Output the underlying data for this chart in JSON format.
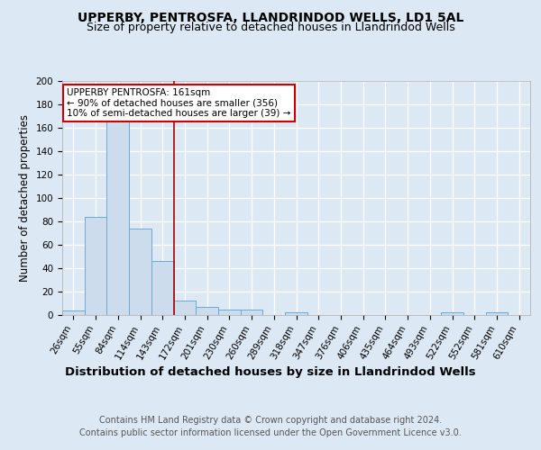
{
  "title1": "UPPERBY, PENTROSFA, LLANDRINDOD WELLS, LD1 5AL",
  "title2": "Size of property relative to detached houses in Llandrindod Wells",
  "xlabel": "Distribution of detached houses by size in Llandrindod Wells",
  "ylabel": "Number of detached properties",
  "footer1": "Contains HM Land Registry data © Crown copyright and database right 2024.",
  "footer2": "Contains public sector information licensed under the Open Government Licence v3.0.",
  "categories": [
    "26sqm",
    "55sqm",
    "84sqm",
    "114sqm",
    "143sqm",
    "172sqm",
    "201sqm",
    "230sqm",
    "260sqm",
    "289sqm",
    "318sqm",
    "347sqm",
    "376sqm",
    "406sqm",
    "435sqm",
    "464sqm",
    "493sqm",
    "522sqm",
    "552sqm",
    "581sqm",
    "610sqm"
  ],
  "values": [
    4,
    84,
    165,
    74,
    46,
    12,
    7,
    5,
    5,
    0,
    2,
    0,
    0,
    0,
    0,
    0,
    0,
    2,
    0,
    2,
    0
  ],
  "bar_color": "#ccdcec",
  "bar_edgecolor": "#6aaad4",
  "red_line_index": 4.5,
  "annotation_title": "UPPERBY PENTROSFA: 161sqm",
  "annotation_line1": "← 90% of detached houses are smaller (356)",
  "annotation_line2": "10% of semi-detached houses are larger (39) →",
  "annotation_box_color": "#ffffff",
  "annotation_box_edgecolor": "#cc0000",
  "ylim": [
    0,
    200
  ],
  "yticks": [
    0,
    20,
    40,
    60,
    80,
    100,
    120,
    140,
    160,
    180,
    200
  ],
  "background_color": "#dce9f5",
  "plot_background": "#dce9f5",
  "grid_color": "#ffffff",
  "title1_fontsize": 10,
  "title2_fontsize": 9,
  "xlabel_fontsize": 9.5,
  "ylabel_fontsize": 8.5,
  "tick_fontsize": 7.5,
  "footer_fontsize": 7,
  "ann_fontsize": 7.5
}
